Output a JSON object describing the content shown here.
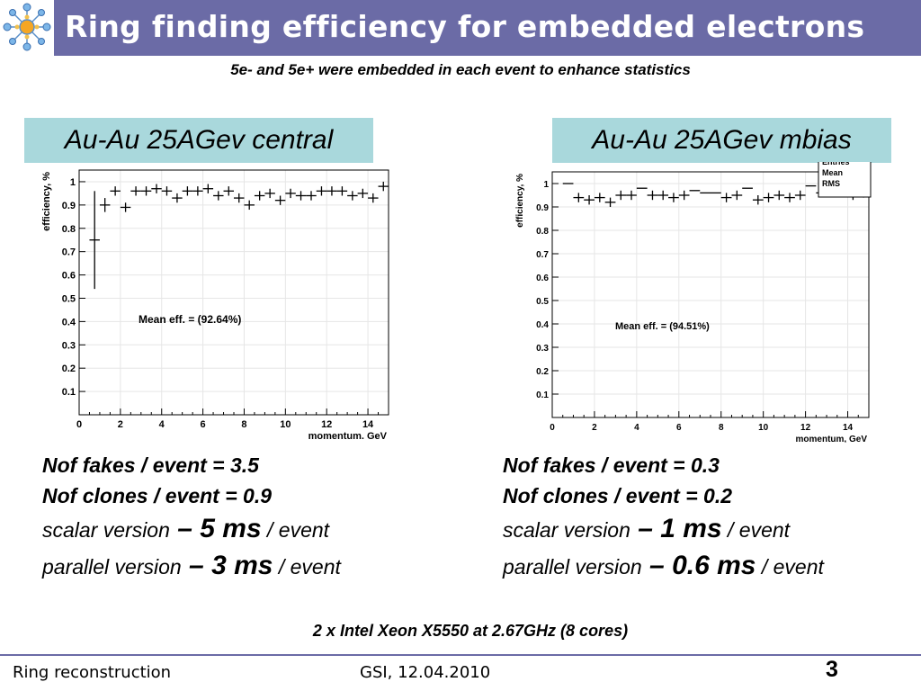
{
  "header": {
    "title": "Ring finding efficiency for embedded electrons",
    "subtitle": "5e- and 5e+ were embedded in each event to enhance statistics"
  },
  "colors": {
    "title_bar": "#6b6ba6",
    "label_bg": "#a9d8dc"
  },
  "icons": {
    "logo": "snowflake-network-logo"
  },
  "labels": {
    "left": "Au-Au 25AGev central",
    "right": "Au-Au 25AGev mbias"
  },
  "stats_left": {
    "fakes": "Nof fakes / event = 3.5",
    "clones": "Nof clones / event = 0.9",
    "scalar_prefix": "scalar version",
    "scalar_dash": " – ",
    "scalar_value": "5 ms",
    "scalar_suffix": " / event",
    "parallel_prefix": "parallel version",
    "parallel_dash": " – ",
    "parallel_value": "3 ms",
    "parallel_suffix": " / event"
  },
  "stats_right": {
    "fakes": "Nof fakes / event = 0.3",
    "clones": "Nof clones / event = 0.2",
    "scalar_prefix": "scalar version",
    "scalar_dash": " – ",
    "scalar_value": "1 ms",
    "scalar_suffix": " / event",
    "parallel_prefix": "parallel version",
    "parallel_dash": " – ",
    "parallel_value": "0.6 ms",
    "parallel_suffix": " / event"
  },
  "cpu_note": "2 x Intel Xeon X5550 at 2.67GHz (8 cores)",
  "footer": {
    "left": "Ring reconstruction",
    "center": "GSI, 12.04.2010",
    "page": "3"
  },
  "chart_data": [
    {
      "type": "scatter",
      "title": "",
      "xlabel": "momentum, GeV",
      "ylabel": "efficiency, %",
      "xlim": [
        0,
        15
      ],
      "ylim": [
        0,
        1.05
      ],
      "xticks": [
        0,
        2,
        4,
        6,
        8,
        10,
        12,
        14
      ],
      "yticks": [
        0.1,
        0.2,
        0.3,
        0.4,
        0.5,
        0.6,
        0.7,
        0.8,
        0.9,
        1
      ],
      "grid": true,
      "annotation": "Mean eff. = (92.64%)",
      "series": [
        {
          "x": [
            0.75,
            1.25,
            1.75,
            2.25,
            2.75,
            3.25,
            3.75,
            4.25,
            4.75,
            5.25,
            5.75,
            6.25,
            6.75,
            7.25,
            7.75,
            8.25,
            8.75,
            9.25,
            9.75,
            10.25,
            10.75,
            11.25,
            11.75,
            12.25,
            12.75,
            13.25,
            13.75,
            14.25,
            14.75
          ],
          "y": [
            0.75,
            0.9,
            0.96,
            0.89,
            0.96,
            0.96,
            0.97,
            0.96,
            0.93,
            0.96,
            0.96,
            0.97,
            0.94,
            0.96,
            0.93,
            0.9,
            0.94,
            0.95,
            0.92,
            0.95,
            0.94,
            0.94,
            0.96,
            0.96,
            0.96,
            0.94,
            0.95,
            0.93,
            0.98
          ],
          "yerr": [
            0.21,
            0.03,
            0.02,
            0.02,
            0.01,
            0.01,
            0.01,
            0.01,
            0.01,
            0.01,
            0.01,
            0.01,
            0.01,
            0.01,
            0.01,
            0.01,
            0.01,
            0.01,
            0.01,
            0.01,
            0.01,
            0.01,
            0.01,
            0.01,
            0.01,
            0.01,
            0.01,
            0.01,
            0.01
          ]
        }
      ]
    },
    {
      "type": "scatter",
      "title": "",
      "xlabel": "momentum, GeV",
      "ylabel": "efficiency, %",
      "xlim": [
        0,
        15
      ],
      "ylim": [
        0,
        1.05
      ],
      "xticks": [
        0,
        2,
        4,
        6,
        8,
        10,
        12,
        14
      ],
      "yticks": [
        0.1,
        0.2,
        0.3,
        0.4,
        0.5,
        0.6,
        0.7,
        0.8,
        0.9,
        1
      ],
      "grid": true,
      "annotation": "Mean eff. = (94.51%)",
      "legend_lines": [
        "Entries",
        "Mean",
        "RMS"
      ],
      "series": [
        {
          "x": [
            0.75,
            1.25,
            1.75,
            2.25,
            2.75,
            3.25,
            3.75,
            4.25,
            4.75,
            5.25,
            5.75,
            6.25,
            6.75,
            7.25,
            7.75,
            8.25,
            8.75,
            9.25,
            9.75,
            10.25,
            10.75,
            11.25,
            11.75,
            12.25,
            12.75,
            13.25,
            13.75,
            14.25,
            14.75
          ],
          "y": [
            1.0,
            0.94,
            0.93,
            0.94,
            0.92,
            0.95,
            0.95,
            0.98,
            0.95,
            0.95,
            0.94,
            0.95,
            0.97,
            0.96,
            0.96,
            0.94,
            0.95,
            0.98,
            0.93,
            0.94,
            0.95,
            0.94,
            0.95,
            0.99,
            0.96,
            0.96,
            0.96,
            0.95,
            0.96
          ],
          "yerr": [
            0.0,
            0.02,
            0.02,
            0.02,
            0.02,
            0.01,
            0.01,
            0.0,
            0.01,
            0.01,
            0.01,
            0.01,
            0.0,
            0.0,
            0.0,
            0.01,
            0.01,
            0.0,
            0.01,
            0.01,
            0.01,
            0.01,
            0.01,
            0.0,
            0.0,
            0.0,
            0.0,
            0.01,
            0.01
          ]
        }
      ]
    }
  ]
}
